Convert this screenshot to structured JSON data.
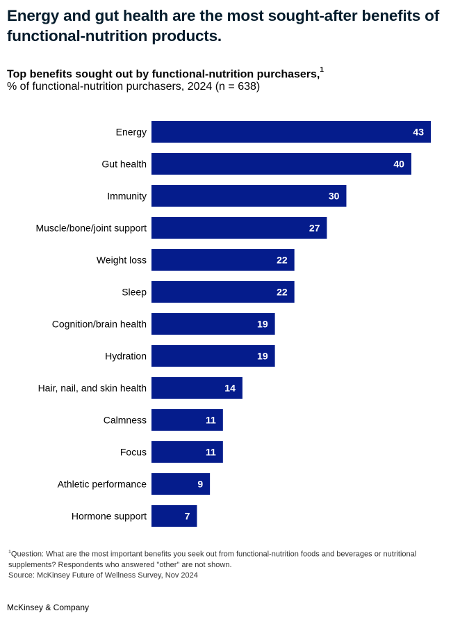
{
  "headline": "Energy and gut health are the most sought-after benefits of functional-nutrition products.",
  "chart_data": {
    "type": "bar",
    "orientation": "horizontal",
    "title": "Top benefits sought out by functional-nutrition purchasers,",
    "title_footnote_marker": "1",
    "subtitle": "% of functional-nutrition purchasers, 2024 (n = 638)",
    "categories": [
      "Energy",
      "Gut health",
      "Immunity",
      "Muscle/bone/joint support",
      "Weight loss",
      "Sleep",
      "Cognition/brain health",
      "Hydration",
      "Hair, nail, and skin health",
      "Calmness",
      "Focus",
      "Athletic performance",
      "Hormone support"
    ],
    "values": [
      43,
      40,
      30,
      27,
      22,
      22,
      19,
      19,
      14,
      11,
      11,
      9,
      7
    ],
    "xlim": [
      0,
      43
    ],
    "grid": false,
    "legend": "none",
    "bar_color": "#051c8c",
    "label_color": "#ffffff"
  },
  "footnote": {
    "marker": "1",
    "question": "Question: What are the most important benefits you seek out from functional-nutrition foods and beverages or nutritional supplements? Respondents who answered \"other\" are not shown.",
    "source": "Source: McKinsey Future of Wellness Survey, Nov 2024"
  },
  "brand": "McKinsey & Company"
}
